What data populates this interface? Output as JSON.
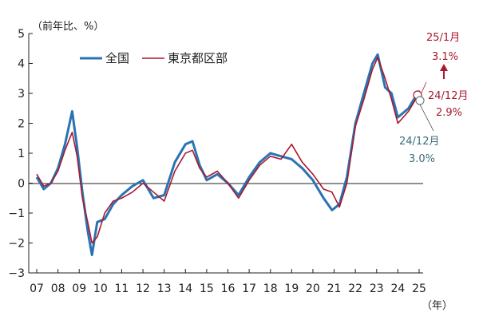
{
  "chart_data": {
    "type": "line",
    "y_unit_label": "（前年比、%）",
    "x_unit_label": "（年）",
    "ylim": [
      -3,
      5
    ],
    "yticks": [
      "5",
      "4",
      "3",
      "2",
      "1",
      "0",
      "−1",
      "−2",
      "−3"
    ],
    "xticks": [
      "07",
      "08",
      "09",
      "10",
      "11",
      "12",
      "13",
      "14",
      "15",
      "16",
      "17",
      "18",
      "19",
      "20",
      "21",
      "22",
      "23",
      "24",
      "25"
    ],
    "grid": false,
    "legend_placement": "top-left",
    "series": [
      {
        "name": "全国",
        "color": "#2a73b3",
        "x": [
          2007.0,
          2007.33,
          2007.67,
          2008.0,
          2008.33,
          2008.67,
          2008.9,
          2009.15,
          2009.4,
          2009.6,
          2009.85,
          2010.2,
          2010.6,
          2011.0,
          2011.5,
          2012.0,
          2012.5,
          2013.0,
          2013.5,
          2014.0,
          2014.33,
          2014.67,
          2015.0,
          2015.5,
          2016.0,
          2016.5,
          2017.0,
          2017.5,
          2018.0,
          2018.5,
          2019.0,
          2019.5,
          2020.0,
          2020.5,
          2020.9,
          2021.25,
          2021.6,
          2022.0,
          2022.4,
          2022.8,
          2023.05,
          2023.4,
          2023.7,
          2024.0,
          2024.5,
          2024.92
        ],
        "y": [
          0.2,
          -0.2,
          0.0,
          0.5,
          1.3,
          2.4,
          1.2,
          -0.3,
          -1.6,
          -2.4,
          -1.3,
          -1.2,
          -0.7,
          -0.4,
          -0.1,
          0.1,
          -0.5,
          -0.4,
          0.7,
          1.3,
          1.4,
          0.6,
          0.1,
          0.3,
          0.0,
          -0.4,
          0.2,
          0.7,
          1.0,
          0.9,
          0.8,
          0.5,
          0.1,
          -0.5,
          -0.9,
          -0.7,
          0.2,
          2.0,
          3.0,
          4.0,
          4.3,
          3.2,
          3.0,
          2.2,
          2.5,
          3.0
        ]
      },
      {
        "name": "東京都区部",
        "color": "#a8192e",
        "x": [
          2007.0,
          2007.33,
          2007.67,
          2008.0,
          2008.33,
          2008.67,
          2008.9,
          2009.15,
          2009.4,
          2009.6,
          2009.85,
          2010.2,
          2010.6,
          2011.0,
          2011.5,
          2012.0,
          2012.5,
          2013.0,
          2013.5,
          2014.0,
          2014.33,
          2014.67,
          2015.0,
          2015.5,
          2016.0,
          2016.5,
          2017.0,
          2017.5,
          2018.0,
          2018.5,
          2019.0,
          2019.5,
          2020.0,
          2020.5,
          2020.9,
          2021.25,
          2021.6,
          2022.0,
          2022.4,
          2022.8,
          2023.05,
          2023.4,
          2023.7,
          2024.0,
          2024.5,
          2024.92,
          2025.0
        ],
        "y": [
          0.3,
          -0.1,
          0.0,
          0.4,
          1.1,
          1.7,
          0.9,
          -0.5,
          -1.3,
          -2.0,
          -1.8,
          -1.0,
          -0.6,
          -0.5,
          -0.3,
          0.0,
          -0.3,
          -0.6,
          0.4,
          1.0,
          1.1,
          0.5,
          0.2,
          0.4,
          0.0,
          -0.5,
          0.1,
          0.6,
          0.9,
          0.8,
          1.3,
          0.7,
          0.3,
          -0.2,
          -0.3,
          -0.8,
          0.0,
          1.9,
          2.8,
          3.8,
          4.2,
          3.5,
          2.8,
          2.0,
          2.4,
          2.9,
          3.1
        ]
      }
    ],
    "annotations": [
      {
        "label": "25/1月",
        "value": "3.1%",
        "color": "red"
      },
      {
        "label": "24/12月",
        "value": "2.9%",
        "color": "red"
      },
      {
        "label": "24/12月",
        "value": "3.0%",
        "color": "blue"
      }
    ]
  }
}
